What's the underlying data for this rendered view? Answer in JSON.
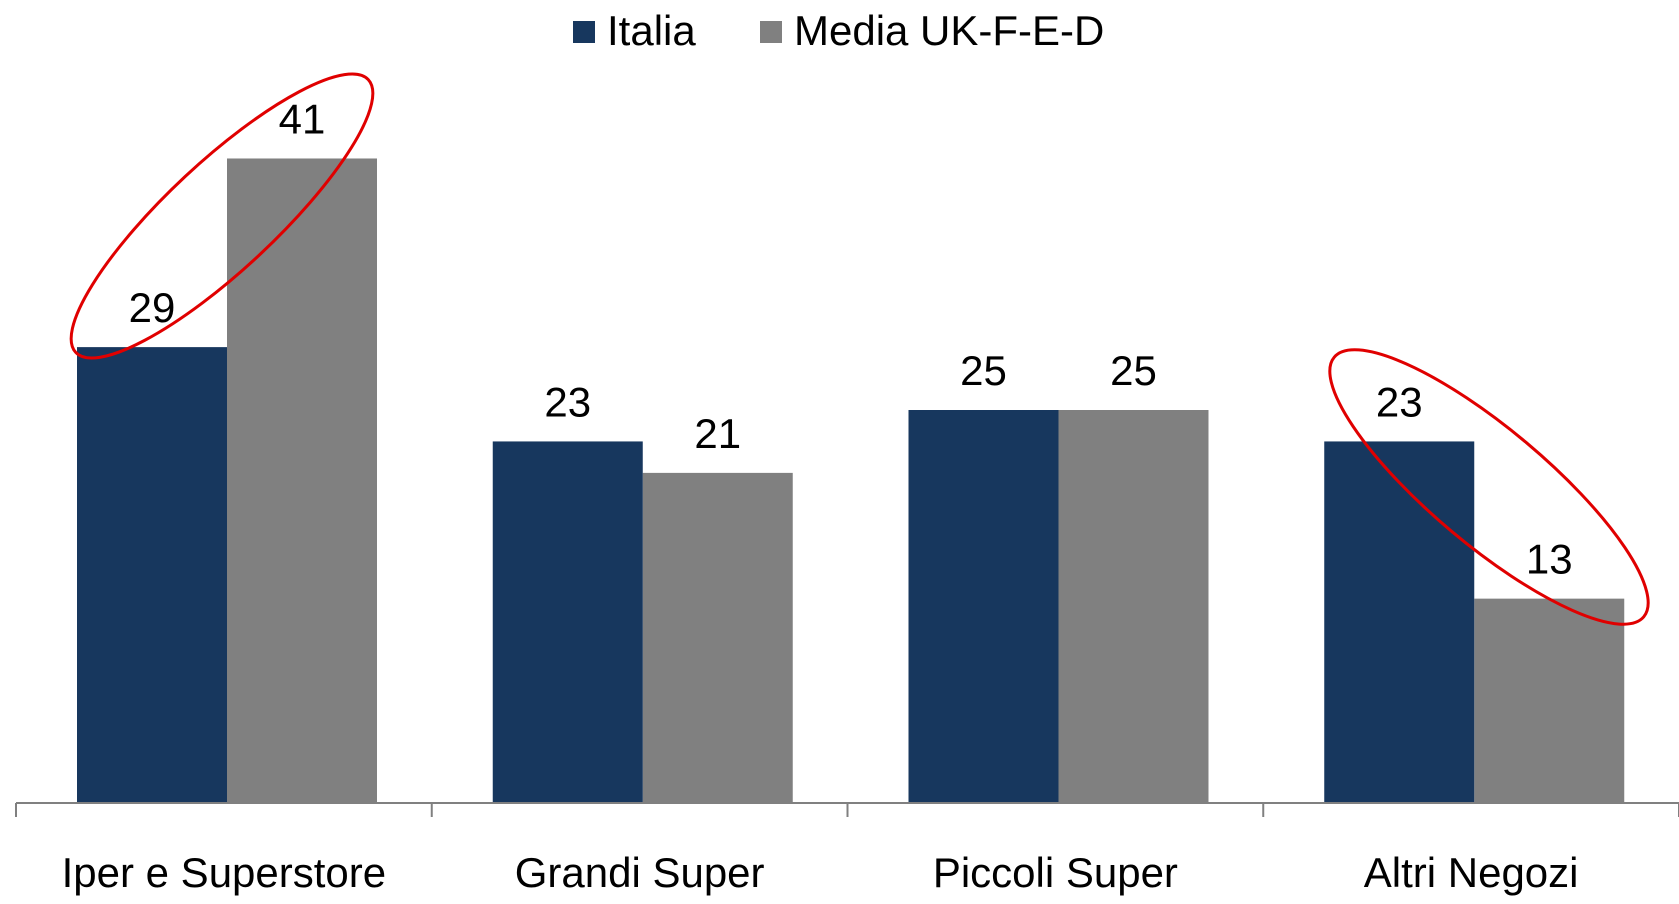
{
  "chart_data": {
    "type": "bar",
    "categories": [
      "Iper e Superstore",
      "Grandi Super",
      "Piccoli Super",
      "Altri Negozi"
    ],
    "series": [
      {
        "name": "Italia",
        "color": "#17375e",
        "values": [
          29,
          23,
          25,
          23
        ]
      },
      {
        "name": "Media UK-F-E-D",
        "color": "#808080",
        "values": [
          41,
          21,
          25,
          13
        ]
      }
    ],
    "ylim": [
      0,
      45
    ],
    "legend": "top"
  }
}
